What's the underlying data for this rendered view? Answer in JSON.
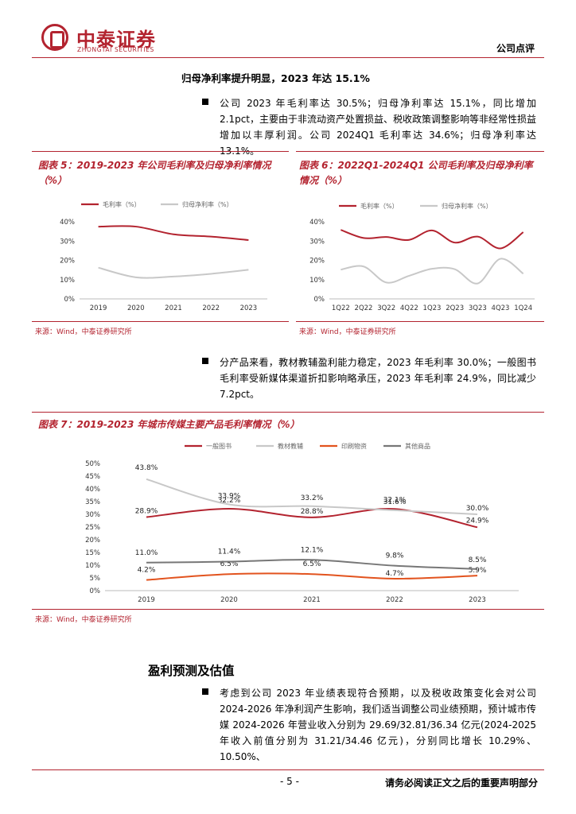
{
  "header": {
    "logo_cn": "中泰证券",
    "logo_en": "ZHONGTAI SECURITIES",
    "doc_type": "公司点评"
  },
  "section1": {
    "title": "归母净利率提升明显，2023 年达 15.1%",
    "bullet1": "公司 2023 年毛利率达 30.5%；归母净利率达 15.1%，同比增加 2.1pct，主要由于非流动资产处置损益、税收政策调整影响等非经常性损益增加以丰厚利润。公司 2024Q1 毛利率达 34.6%；归母净利率达 13.1%。"
  },
  "fig5": {
    "title": "图表 5：2019-2023 年公司毛利率及归母净利率情况（%）",
    "source": "来源：Wind，中泰证券研究所"
  },
  "fig6": {
    "title": "图表 6：2022Q1-2024Q1 公司毛利率及归母净利率情况（%）",
    "source": "来源：Wind，中泰证券研究所"
  },
  "section2": {
    "bullet2": "分产品来看，教材教辅盈利能力稳定，2023 年毛利率 30.0%；一般图书毛利率受新媒体渠道折扣影响略承压，2023 年毛利率 24.9%，同比减少 7.2pct。"
  },
  "fig7": {
    "title": "图表 7：2019-2023 年城市传媒主要产品毛利率情况（%）",
    "source": "来源：Wind，中泰证券研究所"
  },
  "section3": {
    "title": "盈利预测及估值",
    "bullet3": "考虑到公司 2023 年业绩表现符合预期，以及税收政策变化会对公司 2024-2026 年净利润产生影响，我们适当调整公司业绩预期，预计城市传媒 2024-2026 年营业收入分别为 29.69/32.81/36.34 亿元(2024-2025 年收入前值分别为 31.21/34.46 亿元)，分别同比增长 10.29%、10.50%、"
  },
  "footer": {
    "page": "- 5 -",
    "note": "请务必阅读正文之后的重要声明部分"
  },
  "colors": {
    "brand": "#b3232f",
    "gray_line": "#c8c8c8",
    "orange": "#e2531e",
    "dark_gray": "#777777"
  },
  "chart_data": [
    {
      "type": "line",
      "x": [
        "2019",
        "2020",
        "2021",
        "2022",
        "2023"
      ],
      "series": [
        {
          "name": "毛利率（%）",
          "values": [
            37.5,
            37.5,
            33.5,
            32.3,
            30.5
          ]
        },
        {
          "name": "归母净利率（%）",
          "values": [
            16.2,
            11.2,
            11.6,
            13.0,
            15.1
          ]
        }
      ],
      "ylim": [
        0,
        40
      ],
      "yticks": [
        "0%",
        "10%",
        "20%",
        "30%",
        "40%"
      ],
      "legend": "top"
    },
    {
      "type": "line",
      "x": [
        "1Q22",
        "2Q22",
        "3Q22",
        "4Q22",
        "1Q23",
        "2Q23",
        "3Q23",
        "4Q23",
        "1Q24"
      ],
      "series": [
        {
          "name": "毛利率（%）",
          "values": [
            35.8,
            31.6,
            32.1,
            30.6,
            35.5,
            29.2,
            32.3,
            26.2,
            34.6
          ]
        },
        {
          "name": "归母净利率（%）",
          "values": [
            15.2,
            16.8,
            8.5,
            12.0,
            15.6,
            15.4,
            8.0,
            20.8,
            13.1
          ]
        }
      ],
      "ylim": [
        0,
        40
      ],
      "yticks": [
        "0%",
        "10%",
        "20%",
        "30%",
        "40%"
      ],
      "legend": "top"
    },
    {
      "type": "line",
      "x": [
        "2019",
        "2020",
        "2021",
        "2022",
        "2023"
      ],
      "series": [
        {
          "name": "一般图书",
          "values": [
            28.9,
            32.2,
            28.8,
            32.1,
            24.9
          ],
          "labels": [
            "28.9%",
            "32.2%",
            "28.8%",
            "32.1%",
            "24.9%"
          ]
        },
        {
          "name": "教材教辅",
          "values": [
            43.8,
            33.9,
            33.2,
            31.6,
            30.0
          ],
          "labels": [
            "43.8%",
            "33.9%",
            "33.2%",
            "31.6%",
            "30.0%"
          ]
        },
        {
          "name": "印刷物资",
          "values": [
            4.2,
            6.5,
            6.5,
            4.7,
            5.9
          ],
          "labels": [
            "4.2%",
            "6.5%",
            "6.5%",
            "4.7%",
            "5.9%"
          ]
        },
        {
          "name": "其他商品",
          "values": [
            11.0,
            11.4,
            12.1,
            9.8,
            8.5
          ],
          "labels": [
            "11.0%",
            "11.4%",
            "12.1%",
            "9.8%",
            "8.5%"
          ]
        }
      ],
      "ylim": [
        0,
        50
      ],
      "yticks": [
        "0%",
        "5%",
        "10%",
        "15%",
        "20%",
        "25%",
        "30%",
        "35%",
        "40%",
        "45%",
        "50%"
      ],
      "legend": "top"
    }
  ]
}
